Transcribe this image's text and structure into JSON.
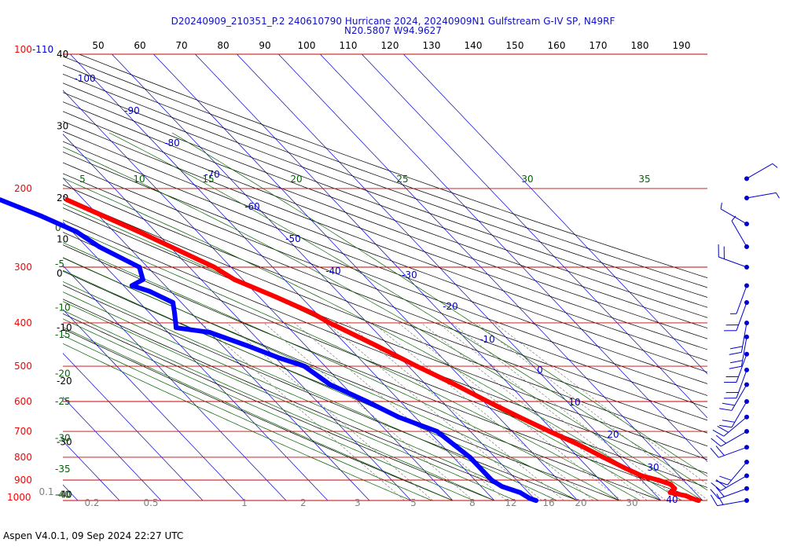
{
  "title_line1": "D20240909_210351_P.2 240610790 Hurricane 2024, 20240909N1 Gulfstream G-IV SP, N49RF",
  "title_line2": "N20.5807 W94.9627",
  "footer": "Aspen V4.0.1, 09 Sep 2024  22:27 UTC",
  "colors": {
    "temperature": "#ff0000",
    "dewpoint": "#0000ff",
    "isobar": "#cc0000",
    "isotherm": "#0000cc",
    "dry_adiabat": "#000000",
    "moist_adiabat": "#006400",
    "mixing_ratio": "#808080",
    "theta_label": "#006400"
  },
  "chart_data": {
    "type": "skew-t",
    "pressure_levels": [
      {
        "p": 100,
        "label": "100"
      },
      {
        "p": 200,
        "label": "200"
      },
      {
        "p": 300,
        "label": "300"
      },
      {
        "p": 400,
        "label": "400"
      },
      {
        "p": 500,
        "label": "500"
      },
      {
        "p": 600,
        "label": "600"
      },
      {
        "p": 700,
        "label": "700"
      },
      {
        "p": 800,
        "label": "800"
      },
      {
        "p": 900,
        "label": "900"
      },
      {
        "p": 1000,
        "label": "1000"
      }
    ],
    "top_pressure_suffix": "-110",
    "top_axis_labels": [
      "50",
      "60",
      "70",
      "80",
      "90",
      "100",
      "110",
      "120",
      "130",
      "140",
      "150",
      "160",
      "170",
      "180",
      "190"
    ],
    "left_axis_black_labels": [
      {
        "p": 100,
        "label": "40"
      },
      {
        "p": 145,
        "label": "30"
      },
      {
        "p": 210,
        "label": "20"
      },
      {
        "p": 260,
        "label": "10"
      },
      {
        "p": 310,
        "label": "0"
      },
      {
        "p": 410,
        "label": "-10"
      },
      {
        "p": 540,
        "label": "-20"
      },
      {
        "p": 740,
        "label": "-30"
      },
      {
        "p": 970,
        "label": "-40"
      }
    ],
    "left_axis_green_labels": [
      {
        "p": 245,
        "label": "0"
      },
      {
        "p": 295,
        "label": "-5"
      },
      {
        "p": 370,
        "label": "-10"
      },
      {
        "p": 425,
        "label": "-15"
      },
      {
        "p": 520,
        "label": "-20"
      },
      {
        "p": 600,
        "label": "-25"
      },
      {
        "p": 725,
        "label": "-30"
      },
      {
        "p": 850,
        "label": "-35"
      },
      {
        "p": 970,
        "label": "-40"
      }
    ],
    "theta_labels_200hpa": [
      {
        "label": "5"
      },
      {
        "label": "10"
      },
      {
        "label": "15"
      },
      {
        "label": "20"
      },
      {
        "label": "25"
      },
      {
        "label": "30"
      },
      {
        "label": "35"
      }
    ],
    "isotherm_labels": [
      "-100",
      "-90",
      "-80",
      "-70",
      "-60",
      "-50",
      "-40",
      "-30",
      "-20",
      "-10",
      "0",
      "10",
      "20",
      "30",
      "40"
    ],
    "mixing_ratio_labels": [
      "0.1",
      "0.2",
      "0.5",
      "1",
      "2",
      "3",
      "5",
      "8",
      "12",
      "16",
      "20",
      "30"
    ],
    "temperature": [
      [
        212,
        -54
      ],
      [
        250,
        -44
      ],
      [
        300,
        -34
      ],
      [
        320,
        -32
      ],
      [
        350,
        -26
      ],
      [
        380,
        -21
      ],
      [
        400,
        -19
      ],
      [
        450,
        -13
      ],
      [
        500,
        -8
      ],
      [
        550,
        -3
      ],
      [
        600,
        1
      ],
      [
        650,
        5
      ],
      [
        700,
        9
      ],
      [
        750,
        13
      ],
      [
        800,
        16
      ],
      [
        850,
        19
      ],
      [
        880,
        21
      ],
      [
        900,
        24
      ],
      [
        920,
        26
      ],
      [
        940,
        26
      ],
      [
        960,
        24
      ],
      [
        975,
        27
      ],
      [
        990,
        28
      ],
      [
        1000,
        29
      ]
    ],
    "dewpoint": [
      [
        212,
        -70
      ],
      [
        230,
        -64
      ],
      [
        250,
        -59
      ],
      [
        270,
        -57
      ],
      [
        300,
        -52
      ],
      [
        320,
        -54
      ],
      [
        330,
        -58
      ],
      [
        340,
        -55
      ],
      [
        360,
        -52
      ],
      [
        380,
        -54
      ],
      [
        400,
        -56
      ],
      [
        410,
        -57
      ],
      [
        420,
        -50
      ],
      [
        450,
        -44
      ],
      [
        480,
        -39
      ],
      [
        500,
        -35
      ],
      [
        550,
        -33
      ],
      [
        600,
        -28
      ],
      [
        650,
        -24
      ],
      [
        700,
        -18
      ],
      [
        750,
        -17
      ],
      [
        800,
        -16
      ],
      [
        850,
        -16
      ],
      [
        900,
        -16
      ],
      [
        930,
        -15
      ],
      [
        960,
        -12
      ],
      [
        990,
        -11
      ],
      [
        1000,
        -10
      ]
    ],
    "wind_barbs": [
      {
        "p": 190,
        "speed": 5,
        "dir": 60
      },
      {
        "p": 210,
        "speed": 5,
        "dir": 80
      },
      {
        "p": 240,
        "speed": 5,
        "dir": 300
      },
      {
        "p": 270,
        "speed": 5,
        "dir": 330
      },
      {
        "p": 300,
        "speed": 10,
        "dir": 290
      },
      {
        "p": 330,
        "speed": 5,
        "dir": 200
      },
      {
        "p": 360,
        "speed": 10,
        "dir": 200
      },
      {
        "p": 400,
        "speed": 10,
        "dir": 190
      },
      {
        "p": 430,
        "speed": 10,
        "dir": 190
      },
      {
        "p": 470,
        "speed": 10,
        "dir": 200
      },
      {
        "p": 510,
        "speed": 10,
        "dir": 200
      },
      {
        "p": 550,
        "speed": 10,
        "dir": 210
      },
      {
        "p": 600,
        "speed": 10,
        "dir": 210
      },
      {
        "p": 650,
        "speed": 10,
        "dir": 230
      },
      {
        "p": 700,
        "speed": 10,
        "dir": 240
      },
      {
        "p": 760,
        "speed": 10,
        "dir": 250
      },
      {
        "p": 820,
        "speed": 10,
        "dir": 220
      },
      {
        "p": 880,
        "speed": 10,
        "dir": 240
      },
      {
        "p": 940,
        "speed": 10,
        "dir": 250
      },
      {
        "p": 1000,
        "speed": 10,
        "dir": 260
      }
    ]
  }
}
